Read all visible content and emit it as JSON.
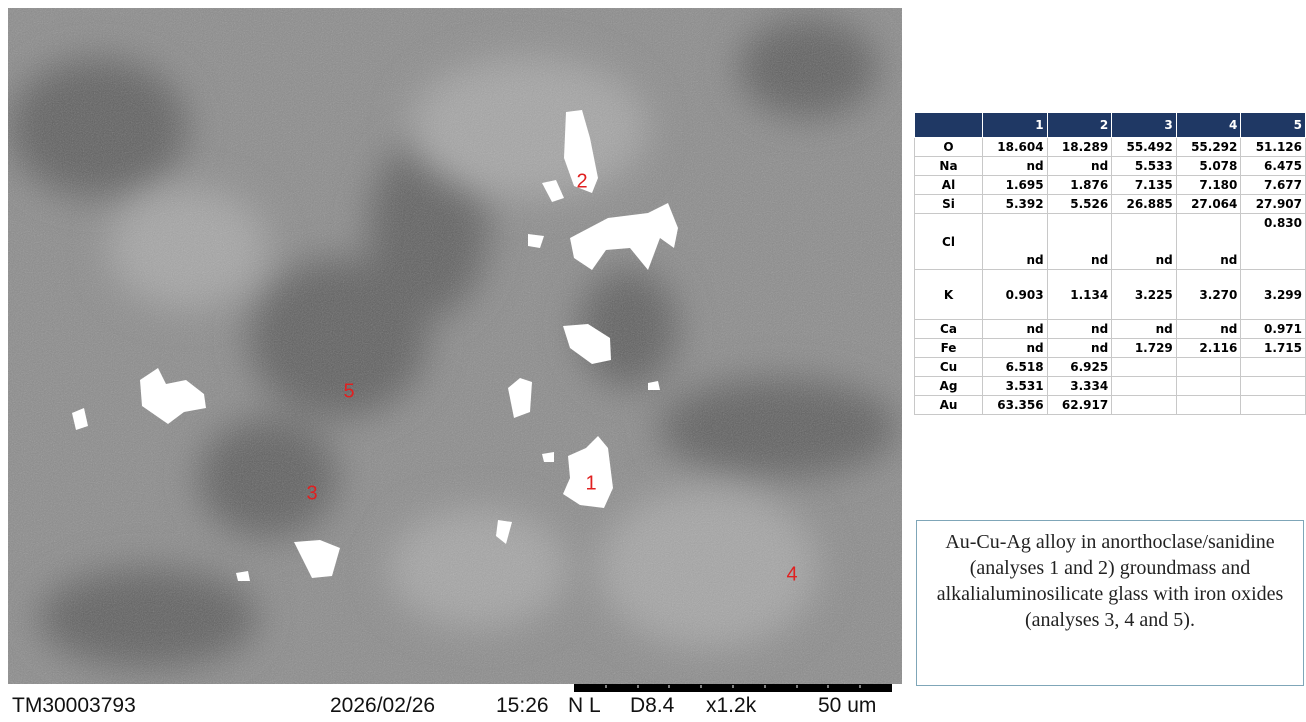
{
  "image": {
    "points": [
      "1",
      "2",
      "3",
      "4",
      "5"
    ]
  },
  "footer": {
    "id": "TM30003793",
    "date": "2026/02/26",
    "time": "15:26",
    "mode": "N L",
    "distance": "D8.4",
    "magnification": "x1.2k",
    "scale": "50 um"
  },
  "table": {
    "header": [
      "1",
      "2",
      "3",
      "4",
      "5"
    ],
    "rows": [
      {
        "label": "O",
        "values": [
          "18.604",
          "18.289",
          "55.492",
          "55.292",
          "51.126"
        ]
      },
      {
        "label": "Na",
        "values": [
          "nd",
          "nd",
          "5.533",
          "5.078",
          "6.475"
        ]
      },
      {
        "label": "Al",
        "values": [
          "1.695",
          "1.876",
          "7.135",
          "7.180",
          "7.677"
        ]
      },
      {
        "label": "Si",
        "values": [
          "5.392",
          "5.526",
          "26.885",
          "27.064",
          "27.907"
        ]
      },
      {
        "label": "Cl",
        "values": [
          "nd",
          "nd",
          "nd",
          "nd",
          "0.830"
        ]
      },
      {
        "label": "K",
        "values": [
          "0.903",
          "1.134",
          "3.225",
          "3.270",
          "3.299"
        ]
      },
      {
        "label": "Ca",
        "values": [
          "nd",
          "nd",
          "nd",
          "nd",
          "0.971"
        ]
      },
      {
        "label": "Fe",
        "values": [
          "nd",
          "nd",
          "1.729",
          "2.116",
          "1.715"
        ]
      },
      {
        "label": "Cu",
        "values": [
          "6.518",
          "6.925",
          null,
          null,
          null
        ]
      },
      {
        "label": "Ag",
        "values": [
          "3.531",
          "3.334",
          null,
          null,
          null
        ]
      },
      {
        "label": "Au",
        "values": [
          "63.356",
          "62.917",
          null,
          null,
          null
        ]
      }
    ]
  },
  "caption": "Au-Cu-Ag alloy in anorthoclase/sanidine (analyses 1 and 2) groundmass and alkalialuminosilicate glass with iron oxides (analyses 3, 4 and 5)."
}
